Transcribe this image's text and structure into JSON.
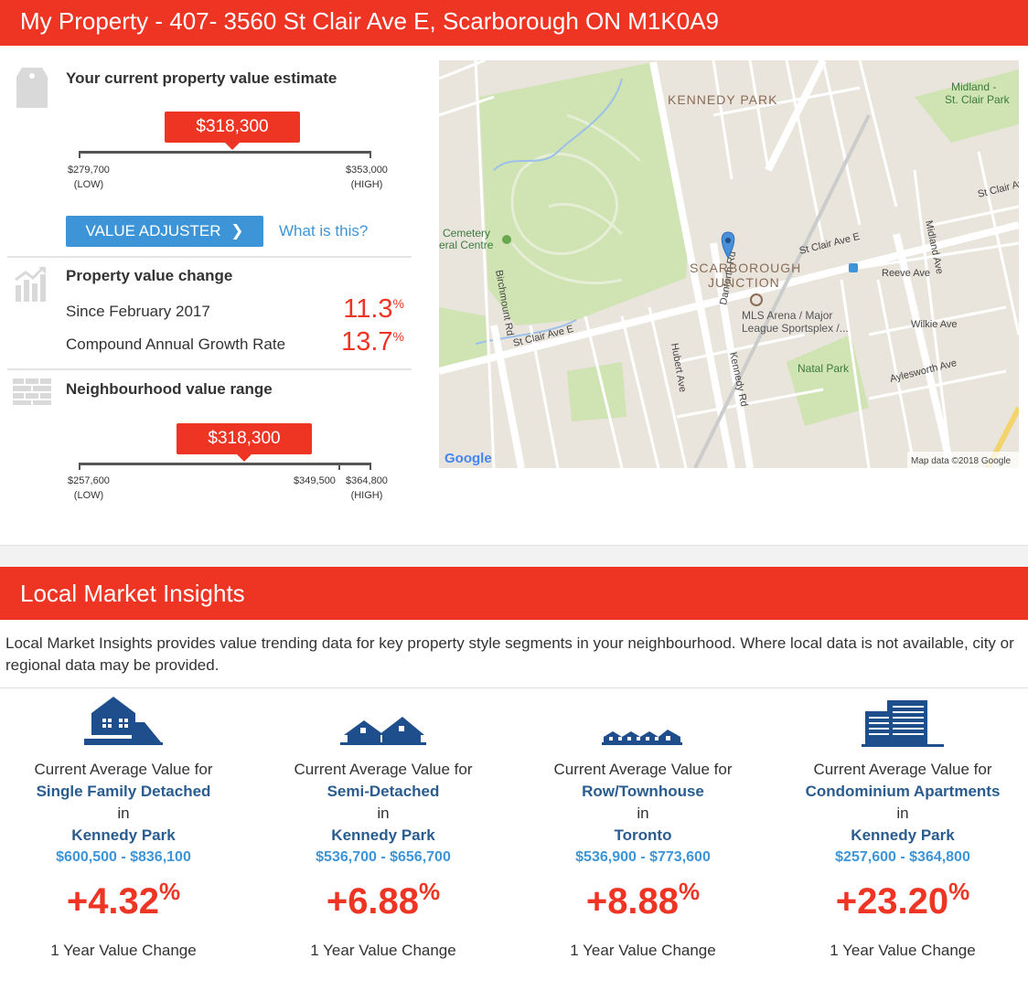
{
  "header": {
    "title": "My Property - 407- 3560 St Clair Ave E, Scarborough ON M1K0A9"
  },
  "estimate": {
    "title": "Your current property value estimate",
    "value": "$318,300",
    "low": "$279,700",
    "low_tag": "(LOW)",
    "high": "$353,000",
    "high_tag": "(HIGH)",
    "adjuster_label": "VALUE ADJUSTER",
    "what_link": "What is this?"
  },
  "change": {
    "title": "Property value change",
    "since_label": "Since February 2017",
    "since_value": "11.3",
    "cagr_label": "Compound Annual Growth Rate",
    "cagr_value": "13.7",
    "pct": "%"
  },
  "neighbourhood": {
    "title": "Neighbourhood value range",
    "value": "$318,300",
    "low": "$257,600",
    "low_tag": "(LOW)",
    "mid": "$349,500",
    "high": "$364,800",
    "high_tag": "(HIGH)"
  },
  "map": {
    "labels": {
      "kennedy_park": "KENNEDY PARK",
      "scarborough": "SCARBOROUGH",
      "junction": "JUNCTION",
      "midland": "Midland -",
      "st_clair_park": "St. Clair Park",
      "cemetery": "Cemetery",
      "funeral": "eral Centre",
      "mls1": "MLS Arena / Major",
      "mls2": "League Sportsplex /...",
      "natal_park": "Natal Park",
      "st_clair_ave_e": "St Clair Ave E",
      "st_clair_ave_e2": "St Clair Ave E",
      "st_clair_ave_e3": "St Clair Ave E",
      "reeve_ave": "Reeve Ave",
      "wilkie_ave": "Wilkie Ave",
      "aylesworth": "Aylesworth Ave",
      "birchmount": "Birchmount Rd",
      "danforth_rd": "Danforth Rd",
      "kennedy_rd": "Kennedy Rd",
      "hubert": "Hubert Ave",
      "midland_ave": "Midland Ave",
      "credit": "Map data ©2018 Google",
      "google": "Google"
    }
  },
  "insights": {
    "title": "Local Market Insights",
    "intro": "Local Market Insights provides value trending data for key property style segments in your neighbourhood. Where local data is not available, city or regional data may be provided."
  },
  "cards": [
    {
      "icon": "single-family-house-icon",
      "lead": "Current Average Value for",
      "type": "Single Family Detached",
      "in": "in",
      "area": "Kennedy Park",
      "range": "$600,500 - $836,100",
      "change": "+4.32",
      "pct": "%",
      "footer": "1 Year Value Change"
    },
    {
      "icon": "semi-detached-house-icon",
      "lead": "Current Average Value for",
      "type": "Semi-Detached",
      "in": "in",
      "area": "Kennedy Park",
      "range": "$536,700 - $656,700",
      "change": "+6.88",
      "pct": "%",
      "footer": "1 Year Value Change"
    },
    {
      "icon": "townhouse-icon",
      "lead": "Current Average Value for",
      "type": "Row/Townhouse",
      "in": "in",
      "area": "Toronto",
      "range": "$536,900 - $773,600",
      "change": "+8.88",
      "pct": "%",
      "footer": "1 Year Value Change"
    },
    {
      "icon": "condo-building-icon",
      "lead": "Current Average Value for",
      "type": "Condominium Apartments",
      "in": "in",
      "area": "Kennedy Park",
      "range": "$257,600 - $364,800",
      "change": "+23.20",
      "pct": "%",
      "footer": "1 Year Value Change"
    }
  ],
  "colors": {
    "brand_red": "#ee3524",
    "link_blue": "#3d95d8",
    "navy": "#2a5c8f"
  }
}
